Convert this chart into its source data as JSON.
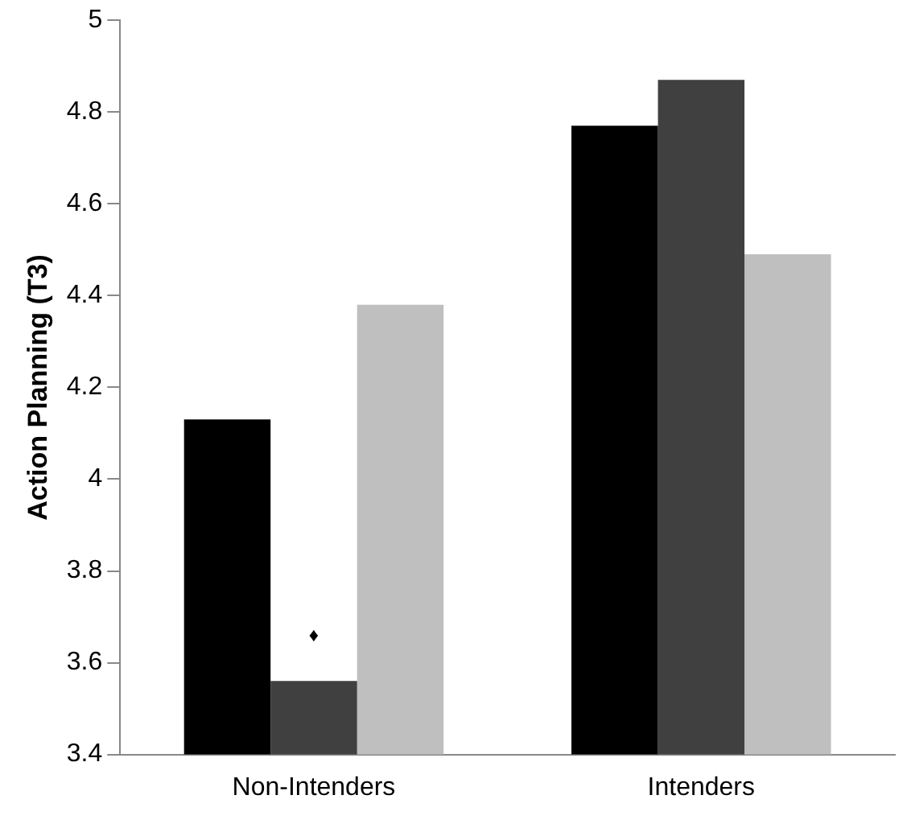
{
  "chart_data": {
    "type": "bar",
    "ylabel": "Action Planning (T3)",
    "categories": [
      "Non-Intenders",
      "Intenders"
    ],
    "series": [
      {
        "color": "#000000",
        "values": [
          4.13,
          4.77
        ]
      },
      {
        "color": "#404040",
        "values": [
          3.56,
          4.87
        ]
      },
      {
        "color": "#bfbfbf",
        "values": [
          4.38,
          4.49
        ]
      }
    ],
    "ylim": [
      3.4,
      5
    ],
    "yticks": [
      3.4,
      3.6,
      3.8,
      4,
      4.2,
      4.4,
      4.6,
      4.8,
      5
    ],
    "grid": false,
    "legend": false,
    "annotations": [
      "♦"
    ]
  }
}
